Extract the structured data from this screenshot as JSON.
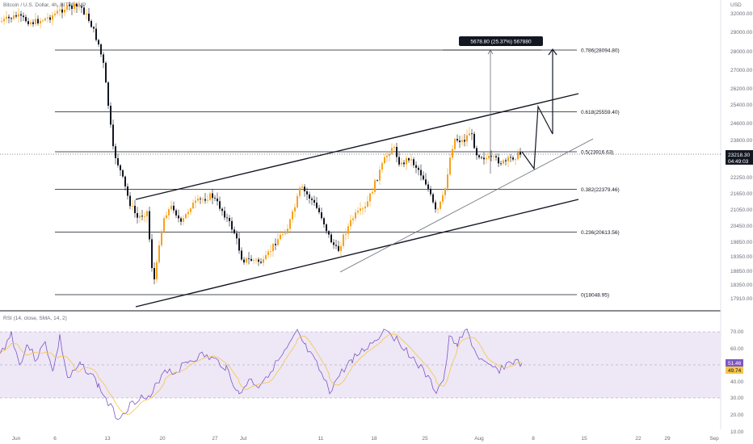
{
  "header": {
    "symbol_title": "Bitcoin / U.S. Dollar, 4h, BITSTAMP",
    "currency": "USD"
  },
  "price_badge": {
    "price": "23218.30",
    "countdown": "04:49:03",
    "color": "#131722"
  },
  "measure_label": "5678.80 (25.37%) 567880",
  "rsi": {
    "label": "RSI (14, close, SMA, 14, 2)",
    "value": "51.46",
    "sma_value": "49.74",
    "rsi_color": "#7e57c2",
    "sma_color": "#f7c548",
    "band_color": "#ede7f6"
  },
  "x_ticks": [
    "Jun",
    "6",
    "13",
    "20",
    "27",
    "Jul",
    "11",
    "18",
    "25",
    "Aug",
    "8",
    "15",
    "22",
    "29",
    "Sep"
  ],
  "y_ticks": [
    "32000.00",
    "29000.00",
    "28000.00",
    "27000.00",
    "26200.00",
    "25400.00",
    "24600.00",
    "23800.00",
    "23000.00",
    "22250.00",
    "21650.00",
    "21050.00",
    "20450.00",
    "19850.00",
    "19350.00",
    "18850.00",
    "18350.00",
    "17910.00"
  ],
  "rsi_ticks": [
    "70.00",
    "60.00",
    "50.00",
    "40.00",
    "30.00",
    "20.00",
    "10.00"
  ],
  "chart_data": {
    "type": "candlestick",
    "fib_levels": [
      {
        "label": "0.786(28094.80)",
        "level": 0.786,
        "price": 28094.8
      },
      {
        "label": "0.618(25559.40)",
        "level": 0.618,
        "price": 25559.4
      },
      {
        "label": "0.5(23916.63)",
        "level": 0.5,
        "price": 23916.63
      },
      {
        "label": "0.382(22379.46)",
        "level": 0.382,
        "price": 22379.46
      },
      {
        "label": "0.236(20613.56)",
        "level": 0.236,
        "price": 20613.56
      },
      {
        "label": "0(18048.95)",
        "level": 0,
        "price": 18048.95
      }
    ],
    "candle_colors": {
      "up": "#f7a21b",
      "down": "#131722"
    }
  }
}
